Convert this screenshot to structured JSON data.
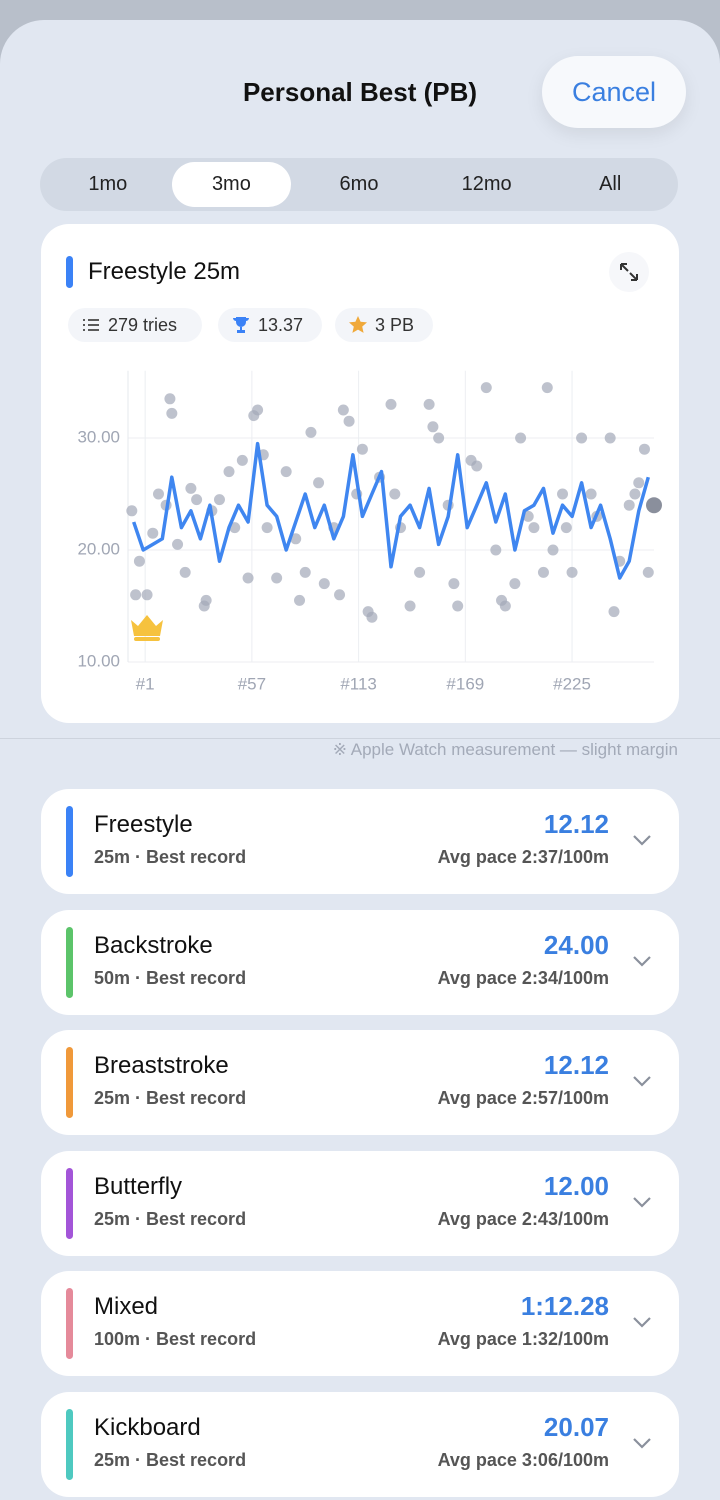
{
  "header": {
    "title": "Personal Best (PB)",
    "cancel": "Cancel"
  },
  "tabs": {
    "items": [
      "1mo",
      "3mo",
      "6mo",
      "12mo",
      "All"
    ],
    "selected": 1
  },
  "card": {
    "title": "Freestyle 25m",
    "accent": "#3b82f6",
    "chips": [
      "279 tries",
      "13.37",
      "3 PB"
    ]
  },
  "chart_data": {
    "type": "line",
    "xlim": [
      -8,
      268
    ],
    "ylim": [
      10,
      36
    ],
    "xticks": [
      {
        "value": 1,
        "label": "#1"
      },
      {
        "value": 57,
        "label": "#57"
      },
      {
        "value": 113,
        "label": "#113"
      },
      {
        "value": 169,
        "label": "#169"
      },
      {
        "value": 225,
        "label": "#225"
      }
    ],
    "yticks": [
      {
        "value": 10,
        "label": "10.00"
      },
      {
        "value": 20,
        "label": "20.00"
      },
      {
        "value": 30,
        "label": "30.00"
      }
    ],
    "grid": true,
    "series": [
      {
        "kind": "scatter",
        "color": "#a3a8b8",
        "x": [
          -6,
          -4,
          -2,
          2,
          5,
          8,
          12,
          14,
          15,
          18,
          22,
          25,
          28,
          32,
          33,
          36,
          40,
          45,
          48,
          52,
          55,
          58,
          60,
          63,
          65,
          70,
          75,
          80,
          82,
          85,
          88,
          92,
          95,
          100,
          103,
          105,
          108,
          112,
          115,
          118,
          120,
          124,
          130,
          132,
          135,
          140,
          145,
          150,
          152,
          155,
          160,
          163,
          165,
          172,
          175,
          180,
          185,
          188,
          190,
          195,
          198,
          202,
          205,
          210,
          212,
          215,
          220,
          222,
          225,
          230,
          235,
          238,
          245,
          247,
          250,
          255,
          258,
          260,
          263,
          265,
          268
        ],
        "values": [
          23.5,
          16,
          19,
          16,
          21.5,
          25,
          24,
          33.5,
          32.2,
          20.5,
          18,
          25.5,
          24.5,
          15,
          15.5,
          23.5,
          24.5,
          27,
          22,
          28,
          17.5,
          32,
          32.5,
          28.5,
          22,
          17.5,
          27,
          21,
          15.5,
          18,
          30.5,
          26,
          17,
          22,
          16,
          32.5,
          31.5,
          25,
          29,
          14.5,
          14,
          26.5,
          33,
          25,
          22,
          15,
          18,
          33,
          31,
          30,
          24,
          17,
          15,
          28,
          27.5,
          34.5,
          20,
          15.5,
          15,
          17,
          30,
          23,
          22,
          18,
          34.5,
          20,
          25,
          22,
          18,
          30,
          25,
          23,
          30,
          14.5,
          19,
          24,
          25,
          26,
          29,
          18,
          24
        ]
      },
      {
        "kind": "line",
        "color": "#3f86f0",
        "x": [
          -5,
          0,
          5,
          10,
          15,
          20,
          25,
          30,
          35,
          40,
          45,
          50,
          55,
          60,
          65,
          70,
          75,
          80,
          85,
          90,
          95,
          100,
          105,
          110,
          115,
          120,
          125,
          130,
          135,
          140,
          145,
          150,
          155,
          160,
          165,
          170,
          175,
          180,
          185,
          190,
          195,
          200,
          205,
          210,
          215,
          220,
          225,
          230,
          235,
          240,
          245,
          250,
          255,
          260,
          265
        ],
        "values": [
          22.5,
          20,
          20.5,
          21,
          26.5,
          22,
          23.5,
          21,
          24,
          19,
          22,
          24,
          22.5,
          29.5,
          24,
          23,
          20,
          22.5,
          25,
          22,
          24,
          21,
          23,
          28.5,
          23,
          25,
          27,
          18.5,
          23,
          24,
          22,
          25.5,
          20.5,
          23,
          28.5,
          22,
          24,
          26,
          22.5,
          25,
          20,
          23.5,
          24,
          25.5,
          21.5,
          24,
          23,
          26,
          22,
          24,
          21,
          17.5,
          19,
          23.5,
          26.5
        ]
      }
    ]
  },
  "note": "※ Apple Watch measurement — slight margin",
  "records": [
    {
      "name": "Freestyle",
      "sub": "25m · Best record",
      "value": "12.12",
      "pace": "Avg pace 2:37/100m",
      "color": "#3b82f6"
    },
    {
      "name": "Backstroke",
      "sub": "50m · Best record",
      "value": "24.00",
      "pace": "Avg pace 2:34/100m",
      "color": "#5cc46a"
    },
    {
      "name": "Breaststroke",
      "sub": "25m · Best record",
      "value": "12.12",
      "pace": "Avg pace 2:57/100m",
      "color": "#f0993a"
    },
    {
      "name": "Butterfly",
      "sub": "25m · Best record",
      "value": "12.00",
      "pace": "Avg pace 2:43/100m",
      "color": "#a355d8"
    },
    {
      "name": "Mixed",
      "sub": "100m · Best record",
      "value": "1:12.28",
      "pace": "Avg pace 1:32/100m",
      "color": "#e58a9a"
    },
    {
      "name": "Kickboard",
      "sub": "25m · Best record",
      "value": "20.07",
      "pace": "Avg pace 3:06/100m",
      "color": "#4ec9c0"
    }
  ]
}
